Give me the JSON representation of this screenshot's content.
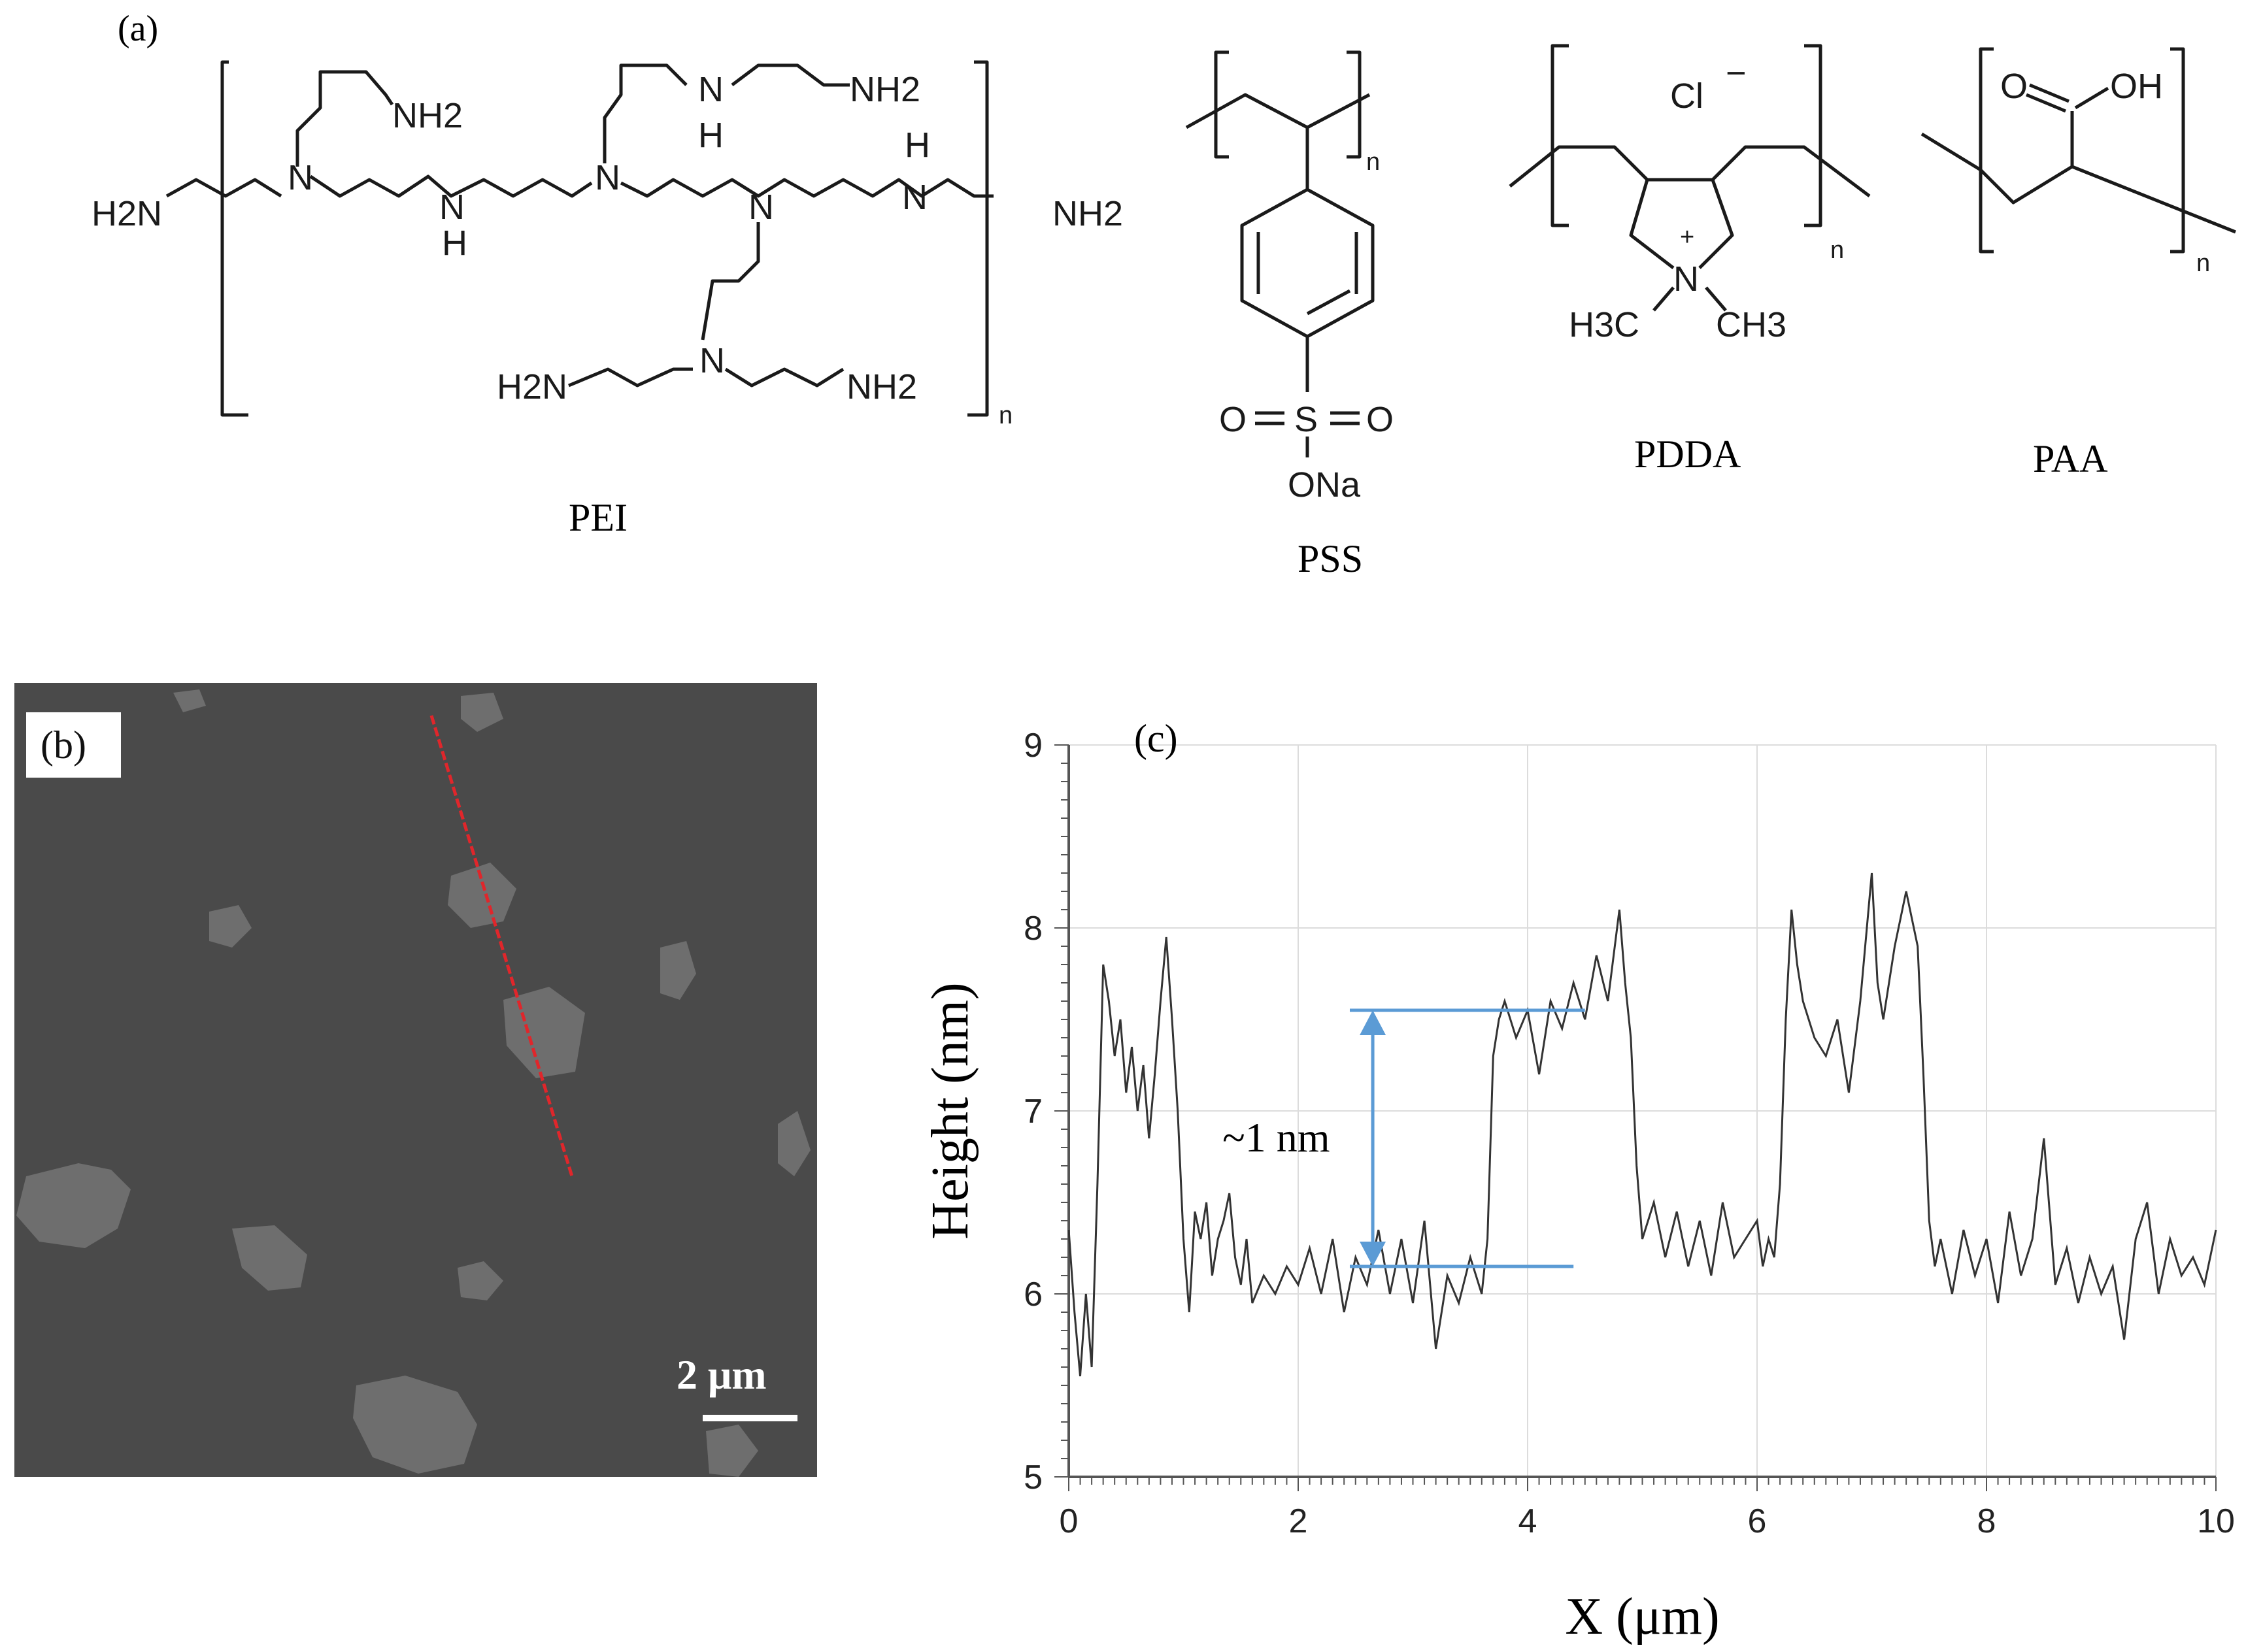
{
  "panel_a": {
    "label": "(a)",
    "polymers": [
      {
        "name": "PEI"
      },
      {
        "name": "PSS"
      },
      {
        "name": "PDDA"
      },
      {
        "name": "PAA"
      }
    ],
    "repeat_subscript": "n",
    "atoms": {
      "H2N": "H2N",
      "NH2": "NH2",
      "N": "N",
      "NH_top": "NH",
      "H": "H",
      "ONa": "ONa",
      "O": "O",
      "S": "S",
      "Cl": "Cl",
      "minus": "−",
      "plus": "+",
      "H3C": "H3C",
      "CH3": "CH3",
      "OH": "OH"
    }
  },
  "panel_b": {
    "label": "(b)",
    "scale_bar_label": "2 μm",
    "image_colors": {
      "background": "#4a4a4a",
      "flakes": "#6e6e6e",
      "profile_line": "#e0262b"
    }
  },
  "panel_c": {
    "label": "(c)",
    "annotation": "~1 nm",
    "annotation_color": "#5b9bd5"
  },
  "chart_data": {
    "type": "line",
    "title": "",
    "xlabel": "X (μm)",
    "ylabel": "Height (nm)",
    "xlim": [
      0,
      10
    ],
    "ylim": [
      5,
      9
    ],
    "xticks": [
      0,
      2,
      4,
      6,
      8,
      10
    ],
    "yticks": [
      5,
      6,
      7,
      8,
      9
    ],
    "grid": true,
    "series": [
      {
        "color": "#333333",
        "points": [
          [
            0.0,
            6.35
          ],
          [
            0.05,
            5.9
          ],
          [
            0.1,
            5.55
          ],
          [
            0.15,
            6.0
          ],
          [
            0.2,
            5.6
          ],
          [
            0.25,
            6.6
          ],
          [
            0.3,
            7.8
          ],
          [
            0.35,
            7.6
          ],
          [
            0.4,
            7.3
          ],
          [
            0.45,
            7.5
          ],
          [
            0.5,
            7.1
          ],
          [
            0.55,
            7.35
          ],
          [
            0.6,
            7.0
          ],
          [
            0.65,
            7.25
          ],
          [
            0.7,
            6.85
          ],
          [
            0.75,
            7.2
          ],
          [
            0.8,
            7.6
          ],
          [
            0.85,
            7.95
          ],
          [
            0.9,
            7.5
          ],
          [
            0.95,
            7.0
          ],
          [
            1.0,
            6.3
          ],
          [
            1.05,
            5.9
          ],
          [
            1.1,
            6.45
          ],
          [
            1.15,
            6.3
          ],
          [
            1.2,
            6.5
          ],
          [
            1.25,
            6.1
          ],
          [
            1.3,
            6.3
          ],
          [
            1.35,
            6.4
          ],
          [
            1.4,
            6.55
          ],
          [
            1.45,
            6.2
          ],
          [
            1.5,
            6.05
          ],
          [
            1.55,
            6.3
          ],
          [
            1.6,
            5.95
          ],
          [
            1.7,
            6.1
          ],
          [
            1.8,
            6.0
          ],
          [
            1.9,
            6.15
          ],
          [
            2.0,
            6.05
          ],
          [
            2.1,
            6.25
          ],
          [
            2.2,
            6.0
          ],
          [
            2.3,
            6.3
          ],
          [
            2.4,
            5.9
          ],
          [
            2.5,
            6.2
          ],
          [
            2.6,
            6.05
          ],
          [
            2.7,
            6.35
          ],
          [
            2.8,
            6.0
          ],
          [
            2.9,
            6.3
          ],
          [
            3.0,
            5.95
          ],
          [
            3.1,
            6.4
          ],
          [
            3.2,
            5.7
          ],
          [
            3.3,
            6.1
          ],
          [
            3.4,
            5.95
          ],
          [
            3.5,
            6.2
          ],
          [
            3.6,
            6.0
          ],
          [
            3.65,
            6.3
          ],
          [
            3.7,
            7.3
          ],
          [
            3.75,
            7.5
          ],
          [
            3.8,
            7.6
          ],
          [
            3.9,
            7.4
          ],
          [
            4.0,
            7.55
          ],
          [
            4.1,
            7.2
          ],
          [
            4.2,
            7.6
          ],
          [
            4.3,
            7.45
          ],
          [
            4.4,
            7.7
          ],
          [
            4.5,
            7.5
          ],
          [
            4.6,
            7.85
          ],
          [
            4.7,
            7.6
          ],
          [
            4.8,
            8.1
          ],
          [
            4.85,
            7.7
          ],
          [
            4.9,
            7.4
          ],
          [
            4.95,
            6.7
          ],
          [
            5.0,
            6.3
          ],
          [
            5.1,
            6.5
          ],
          [
            5.2,
            6.2
          ],
          [
            5.3,
            6.45
          ],
          [
            5.4,
            6.15
          ],
          [
            5.5,
            6.4
          ],
          [
            5.6,
            6.1
          ],
          [
            5.7,
            6.5
          ],
          [
            5.8,
            6.2
          ],
          [
            5.9,
            6.3
          ],
          [
            6.0,
            6.4
          ],
          [
            6.05,
            6.15
          ],
          [
            6.1,
            6.3
          ],
          [
            6.15,
            6.2
          ],
          [
            6.2,
            6.6
          ],
          [
            6.25,
            7.5
          ],
          [
            6.3,
            8.1
          ],
          [
            6.35,
            7.8
          ],
          [
            6.4,
            7.6
          ],
          [
            6.5,
            7.4
          ],
          [
            6.6,
            7.3
          ],
          [
            6.7,
            7.5
          ],
          [
            6.8,
            7.1
          ],
          [
            6.9,
            7.6
          ],
          [
            7.0,
            8.3
          ],
          [
            7.05,
            7.7
          ],
          [
            7.1,
            7.5
          ],
          [
            7.2,
            7.9
          ],
          [
            7.3,
            8.2
          ],
          [
            7.4,
            7.9
          ],
          [
            7.45,
            7.2
          ],
          [
            7.5,
            6.4
          ],
          [
            7.55,
            6.15
          ],
          [
            7.6,
            6.3
          ],
          [
            7.7,
            6.0
          ],
          [
            7.8,
            6.35
          ],
          [
            7.9,
            6.1
          ],
          [
            8.0,
            6.3
          ],
          [
            8.1,
            5.95
          ],
          [
            8.2,
            6.45
          ],
          [
            8.3,
            6.1
          ],
          [
            8.4,
            6.3
          ],
          [
            8.5,
            6.85
          ],
          [
            8.6,
            6.05
          ],
          [
            8.7,
            6.25
          ],
          [
            8.8,
            5.95
          ],
          [
            8.9,
            6.2
          ],
          [
            9.0,
            6.0
          ],
          [
            9.1,
            6.15
          ],
          [
            9.2,
            5.75
          ],
          [
            9.3,
            6.3
          ],
          [
            9.4,
            6.5
          ],
          [
            9.5,
            6.0
          ],
          [
            9.6,
            6.3
          ],
          [
            9.7,
            6.1
          ],
          [
            9.8,
            6.2
          ],
          [
            9.9,
            6.05
          ],
          [
            10.0,
            6.35
          ]
        ]
      }
    ],
    "step_markers": {
      "upper_y": 7.55,
      "lower_y": 6.15,
      "x_start": 2.45,
      "x_upper_end": 4.5,
      "x_lower_end": 4.4,
      "arrow_x": 2.65
    }
  }
}
